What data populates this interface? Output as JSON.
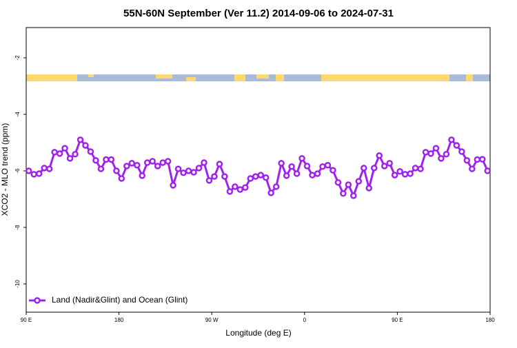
{
  "chart_data": {
    "type": "line",
    "title": "55N-60N September (Ver 11.2)   2014-09-06 to 2024-07-31",
    "xlabel": "Longitude (deg E)",
    "ylabel": "XCO2 - MLO trend (ppm)",
    "x": [
      92.5,
      97.5,
      102.5,
      107.5,
      112.5,
      117.5,
      122.5,
      127.5,
      132.5,
      137.5,
      142.5,
      147.5,
      152.5,
      157.5,
      162.5,
      167.5,
      172.5,
      177.5,
      182.5,
      187.5,
      192.5,
      197.5,
      202.5,
      207.5,
      212.5,
      217.5,
      222.5,
      227.5,
      232.5,
      237.5,
      242.5,
      247.5,
      252.5,
      257.5,
      262.5,
      267.5,
      272.5,
      277.5,
      282.5,
      287.5,
      292.5,
      297.5,
      302.5,
      307.5,
      312.5,
      317.5,
      322.5,
      327.5,
      332.5,
      337.5,
      342.5,
      347.5,
      352.5,
      357.5,
      362.5,
      367.5,
      372.5,
      377.5,
      382.5,
      387.5,
      392.5,
      397.5,
      402.5,
      407.5,
      412.5,
      417.5,
      422.5,
      427.5,
      432.5,
      437.5,
      442.5,
      447.5,
      452.5,
      457.5,
      462.5,
      467.5,
      472.5,
      477.5,
      482.5,
      487.5,
      492.5,
      497.5,
      502.5,
      507.5,
      512.5,
      517.5,
      522.5,
      527.5,
      532.5,
      537.5
    ],
    "series": [
      {
        "name": "Land (Nadir&Glint) and Ocean (Glint)",
        "color": "#a020f0",
        "values": [
          -6.0,
          -6.12,
          -6.1,
          -5.9,
          -5.93,
          -5.34,
          -5.39,
          -5.2,
          -5.56,
          -5.41,
          -4.9,
          -5.1,
          -5.32,
          -5.63,
          -5.93,
          -5.6,
          -5.6,
          -6.0,
          -6.27,
          -5.83,
          -5.73,
          -5.8,
          -6.17,
          -5.71,
          -5.66,
          -5.83,
          -5.71,
          -5.66,
          -6.51,
          -5.93,
          -6.07,
          -6.0,
          -6.05,
          -5.9,
          -5.71,
          -6.34,
          -6.2,
          -5.76,
          -6.2,
          -6.73,
          -6.56,
          -6.66,
          -6.59,
          -6.27,
          -6.2,
          -6.15,
          -6.24,
          -6.78,
          -6.56,
          -5.73,
          -6.17,
          -5.85,
          -6.1,
          -5.56,
          -5.83,
          -6.15,
          -6.1,
          -5.85,
          -5.8,
          -5.98,
          -6.41,
          -6.8,
          -6.49,
          -6.88,
          -6.37,
          -5.9,
          -6.61,
          -5.9,
          -5.46,
          -5.83,
          -5.73,
          -6.15,
          -6.02,
          -6.12,
          -6.1,
          -5.9,
          -5.93,
          -5.34,
          -5.39,
          -5.2,
          -5.56,
          -5.41,
          -4.9,
          -5.1,
          -5.32,
          -5.63,
          -5.93,
          -5.6,
          -5.59,
          -6.0
        ]
      }
    ],
    "xlim": [
      90,
      540
    ],
    "xticks": [
      {
        "value": 90,
        "label": "90 E"
      },
      180,
      {
        "value": 270,
        "label": "90 W"
      },
      {
        "value": 360,
        "label": "0"
      },
      {
        "value": 450,
        "label": "90 E"
      },
      {
        "value": 540,
        "label": "180"
      }
    ],
    "ylim": [
      -11,
      -0.93
    ],
    "yticks": [
      -2,
      -4,
      -6,
      -8,
      -10
    ],
    "legend": "bottom-left"
  }
}
